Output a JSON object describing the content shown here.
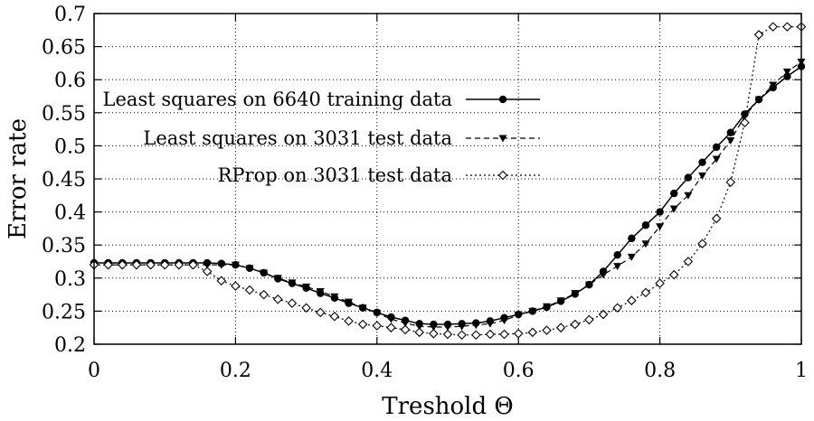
{
  "chart_data": {
    "type": "line",
    "xlabel": "Treshold Θ",
    "ylabel": "Error rate",
    "xlim": [
      0,
      1
    ],
    "ylim": [
      0.2,
      0.7
    ],
    "xticks": [
      "0",
      "0.2",
      "0.4",
      "0.6",
      "0.8",
      "1"
    ],
    "yticks": [
      "0.2",
      "0.25",
      "0.3",
      "0.35",
      "0.4",
      "0.45",
      "0.5",
      "0.55",
      "0.6",
      "0.65",
      "0.7"
    ],
    "grid": true,
    "legend_position": "top-left",
    "x": [
      0,
      0.02,
      0.04,
      0.06,
      0.08,
      0.1,
      0.12,
      0.14,
      0.16,
      0.18,
      0.2,
      0.22,
      0.24,
      0.26,
      0.28,
      0.3,
      0.32,
      0.34,
      0.36,
      0.38,
      0.4,
      0.42,
      0.44,
      0.46,
      0.48,
      0.5,
      0.52,
      0.54,
      0.56,
      0.58,
      0.6,
      0.62,
      0.64,
      0.66,
      0.68,
      0.7,
      0.72,
      0.74,
      0.76,
      0.78,
      0.8,
      0.82,
      0.84,
      0.86,
      0.88,
      0.9,
      0.92,
      0.94,
      0.96,
      0.98,
      1.0
    ],
    "series": [
      {
        "name": "Least squares on 6640 training data",
        "style": "solid",
        "marker": "filled-circle",
        "values": [
          0.323,
          0.323,
          0.323,
          0.323,
          0.323,
          0.323,
          0.323,
          0.323,
          0.323,
          0.322,
          0.32,
          0.315,
          0.308,
          0.299,
          0.292,
          0.285,
          0.277,
          0.27,
          0.262,
          0.255,
          0.248,
          0.241,
          0.236,
          0.231,
          0.23,
          0.23,
          0.231,
          0.232,
          0.235,
          0.24,
          0.245,
          0.25,
          0.256,
          0.265,
          0.276,
          0.29,
          0.31,
          0.335,
          0.36,
          0.38,
          0.4,
          0.428,
          0.452,
          0.475,
          0.498,
          0.52,
          0.548,
          0.57,
          0.588,
          0.605,
          0.62
        ]
      },
      {
        "name": "Least squares on 3031 test data",
        "style": "dashed",
        "marker": "filled-triangle-down",
        "values": [
          0.32,
          0.32,
          0.32,
          0.32,
          0.32,
          0.32,
          0.32,
          0.32,
          0.32,
          0.32,
          0.32,
          0.315,
          0.308,
          0.3,
          0.293,
          0.287,
          0.28,
          0.272,
          0.264,
          0.255,
          0.247,
          0.238,
          0.232,
          0.227,
          0.226,
          0.226,
          0.227,
          0.229,
          0.231,
          0.236,
          0.244,
          0.25,
          0.257,
          0.266,
          0.277,
          0.29,
          0.305,
          0.318,
          0.332,
          0.352,
          0.378,
          0.405,
          0.425,
          0.455,
          0.48,
          0.508,
          0.545,
          0.57,
          0.592,
          0.612,
          0.627
        ]
      },
      {
        "name": "RProp on 3031 test data",
        "style": "dotted",
        "marker": "open-diamond",
        "values": [
          0.32,
          0.32,
          0.32,
          0.32,
          0.32,
          0.32,
          0.32,
          0.32,
          0.31,
          0.296,
          0.288,
          0.282,
          0.275,
          0.268,
          0.262,
          0.255,
          0.248,
          0.242,
          0.235,
          0.23,
          0.228,
          0.225,
          0.222,
          0.218,
          0.216,
          0.215,
          0.214,
          0.214,
          0.215,
          0.215,
          0.216,
          0.218,
          0.221,
          0.225,
          0.23,
          0.237,
          0.245,
          0.255,
          0.266,
          0.278,
          0.292,
          0.305,
          0.325,
          0.352,
          0.39,
          0.445,
          0.535,
          0.668,
          0.68,
          0.68,
          0.68
        ]
      }
    ]
  }
}
